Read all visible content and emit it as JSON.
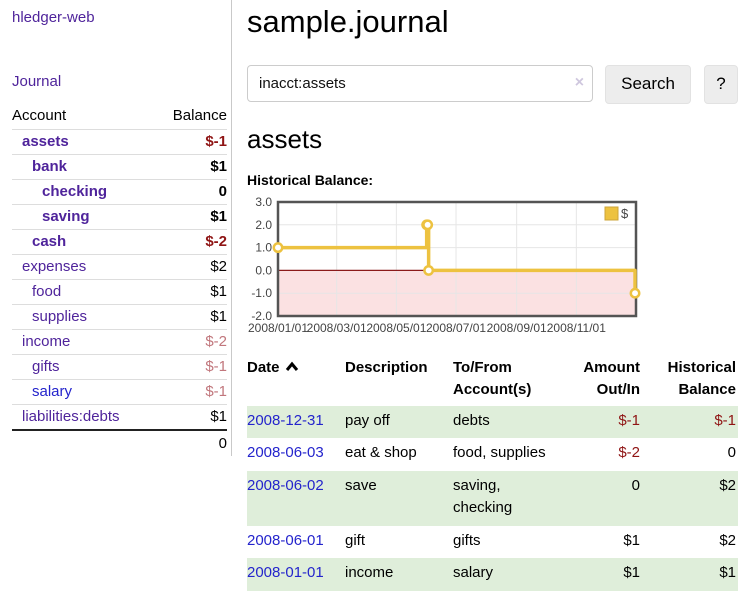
{
  "app": {
    "title": "hledger-web"
  },
  "sidebar": {
    "journal_link": "Journal",
    "accounts_table": {
      "account_header": "Account",
      "balance_header": "Balance",
      "rows": [
        {
          "name": "assets",
          "balance": "$-1",
          "depth": 1,
          "weight": "bold",
          "link_tone": "visited",
          "balance_tone": "neg-strong"
        },
        {
          "name": "bank",
          "balance": "$1",
          "depth": 2,
          "weight": "bold",
          "link_tone": "visited",
          "balance_tone": "pos"
        },
        {
          "name": "checking",
          "balance": "0",
          "depth": 3,
          "weight": "bold",
          "link_tone": "visited",
          "balance_tone": "pos"
        },
        {
          "name": "saving",
          "balance": "$1",
          "depth": 3,
          "weight": "bold",
          "link_tone": "visited",
          "balance_tone": "pos"
        },
        {
          "name": "cash",
          "balance": "$-2",
          "depth": 2,
          "weight": "bold",
          "link_tone": "visited",
          "balance_tone": "neg-strong"
        },
        {
          "name": "expenses",
          "balance": "$2",
          "depth": 1,
          "weight": "normal",
          "link_tone": "visited",
          "balance_tone": "pos"
        },
        {
          "name": "food",
          "balance": "$1",
          "depth": 2,
          "weight": "normal",
          "link_tone": "visited",
          "balance_tone": "pos"
        },
        {
          "name": "supplies",
          "balance": "$1",
          "depth": 2,
          "weight": "normal",
          "link_tone": "visited",
          "balance_tone": "pos"
        },
        {
          "name": "income",
          "balance": "$-2",
          "depth": 1,
          "weight": "normal",
          "link_tone": "visited",
          "balance_tone": "neg-soft"
        },
        {
          "name": "gifts",
          "balance": "$-1",
          "depth": 2,
          "weight": "normal",
          "link_tone": "visited",
          "balance_tone": "neg-soft"
        },
        {
          "name": "salary",
          "balance": "$-1",
          "depth": 2,
          "weight": "normal",
          "link_tone": "unvisited",
          "balance_tone": "neg-soft"
        },
        {
          "name": "liabilities:debts",
          "balance": "$1",
          "depth": 1,
          "weight": "normal",
          "link_tone": "visited",
          "balance_tone": "pos"
        }
      ],
      "total": "0"
    }
  },
  "header": {
    "page_title": "sample.journal"
  },
  "search": {
    "query": "inacct:assets",
    "clear_icon": "×",
    "button_label": "Search",
    "help_label": "?"
  },
  "main": {
    "account_heading": "assets",
    "chart_label": "Historical Balance:"
  },
  "chart_data": {
    "type": "line",
    "step": true,
    "title": "Historical Balance",
    "series": [
      {
        "name": "$",
        "color": "#EDC240",
        "points": [
          [
            "2008/01/01",
            1
          ],
          [
            "2008/06/01",
            2
          ],
          [
            "2008/06/02",
            2
          ],
          [
            "2008/06/03",
            0
          ],
          [
            "2008/12/31",
            -1
          ]
        ]
      }
    ],
    "xlim": [
      "2008/01/01",
      "2009/01/01"
    ],
    "ylim": [
      -2,
      3
    ],
    "y_ticks": [
      {
        "v": 3,
        "label": "3.0"
      },
      {
        "v": 2,
        "label": "2.0"
      },
      {
        "v": 1,
        "label": "1.0"
      },
      {
        "v": 0,
        "label": "0.0"
      },
      {
        "v": -1,
        "label": "-1.0"
      },
      {
        "v": -2,
        "label": "-2.0"
      }
    ],
    "x_ticks": [
      {
        "date": "2008/01/01",
        "label": "2008/01/01"
      },
      {
        "date": "2008/03/01",
        "label": "2008/03/01"
      },
      {
        "date": "2008/05/01",
        "label": "2008/05/01"
      },
      {
        "date": "2008/07/01",
        "label": "2008/07/01"
      },
      {
        "date": "2008/09/01",
        "label": "2008/09/01"
      },
      {
        "date": "2008/11/01",
        "label": "2008/11/01"
      }
    ],
    "legend_position": "top-right",
    "grid": true,
    "negative_fill": "#fbe1e2",
    "zero_line_color": "#8b1a1a",
    "border_color": "#545454"
  },
  "register_table": {
    "headers": {
      "date": "Date",
      "description": "Description",
      "accounts": "To/From Account(s)",
      "amount": "Amount Out/In",
      "balance": "Historical Balance"
    },
    "rows": [
      {
        "date": "2008-12-31",
        "description": "pay off",
        "accounts": "debts",
        "amount": "$-1",
        "amount_tone": "neg",
        "balance": "$-1",
        "balance_tone": "neg"
      },
      {
        "date": "2008-06-03",
        "description": "eat & shop",
        "accounts": "food, supplies",
        "amount": "$-2",
        "amount_tone": "neg",
        "balance": "0",
        "balance_tone": "pos"
      },
      {
        "date": "2008-06-02",
        "description": "save",
        "accounts": "saving, checking",
        "amount": "0",
        "amount_tone": "pos",
        "balance": "$2",
        "balance_tone": "pos"
      },
      {
        "date": "2008-06-01",
        "description": "gift",
        "accounts": "gifts",
        "amount": "$1",
        "amount_tone": "pos",
        "balance": "$2",
        "balance_tone": "pos"
      },
      {
        "date": "2008-01-01",
        "description": "income",
        "accounts": "salary",
        "amount": "$1",
        "amount_tone": "pos",
        "balance": "$1",
        "balance_tone": "pos"
      }
    ]
  }
}
